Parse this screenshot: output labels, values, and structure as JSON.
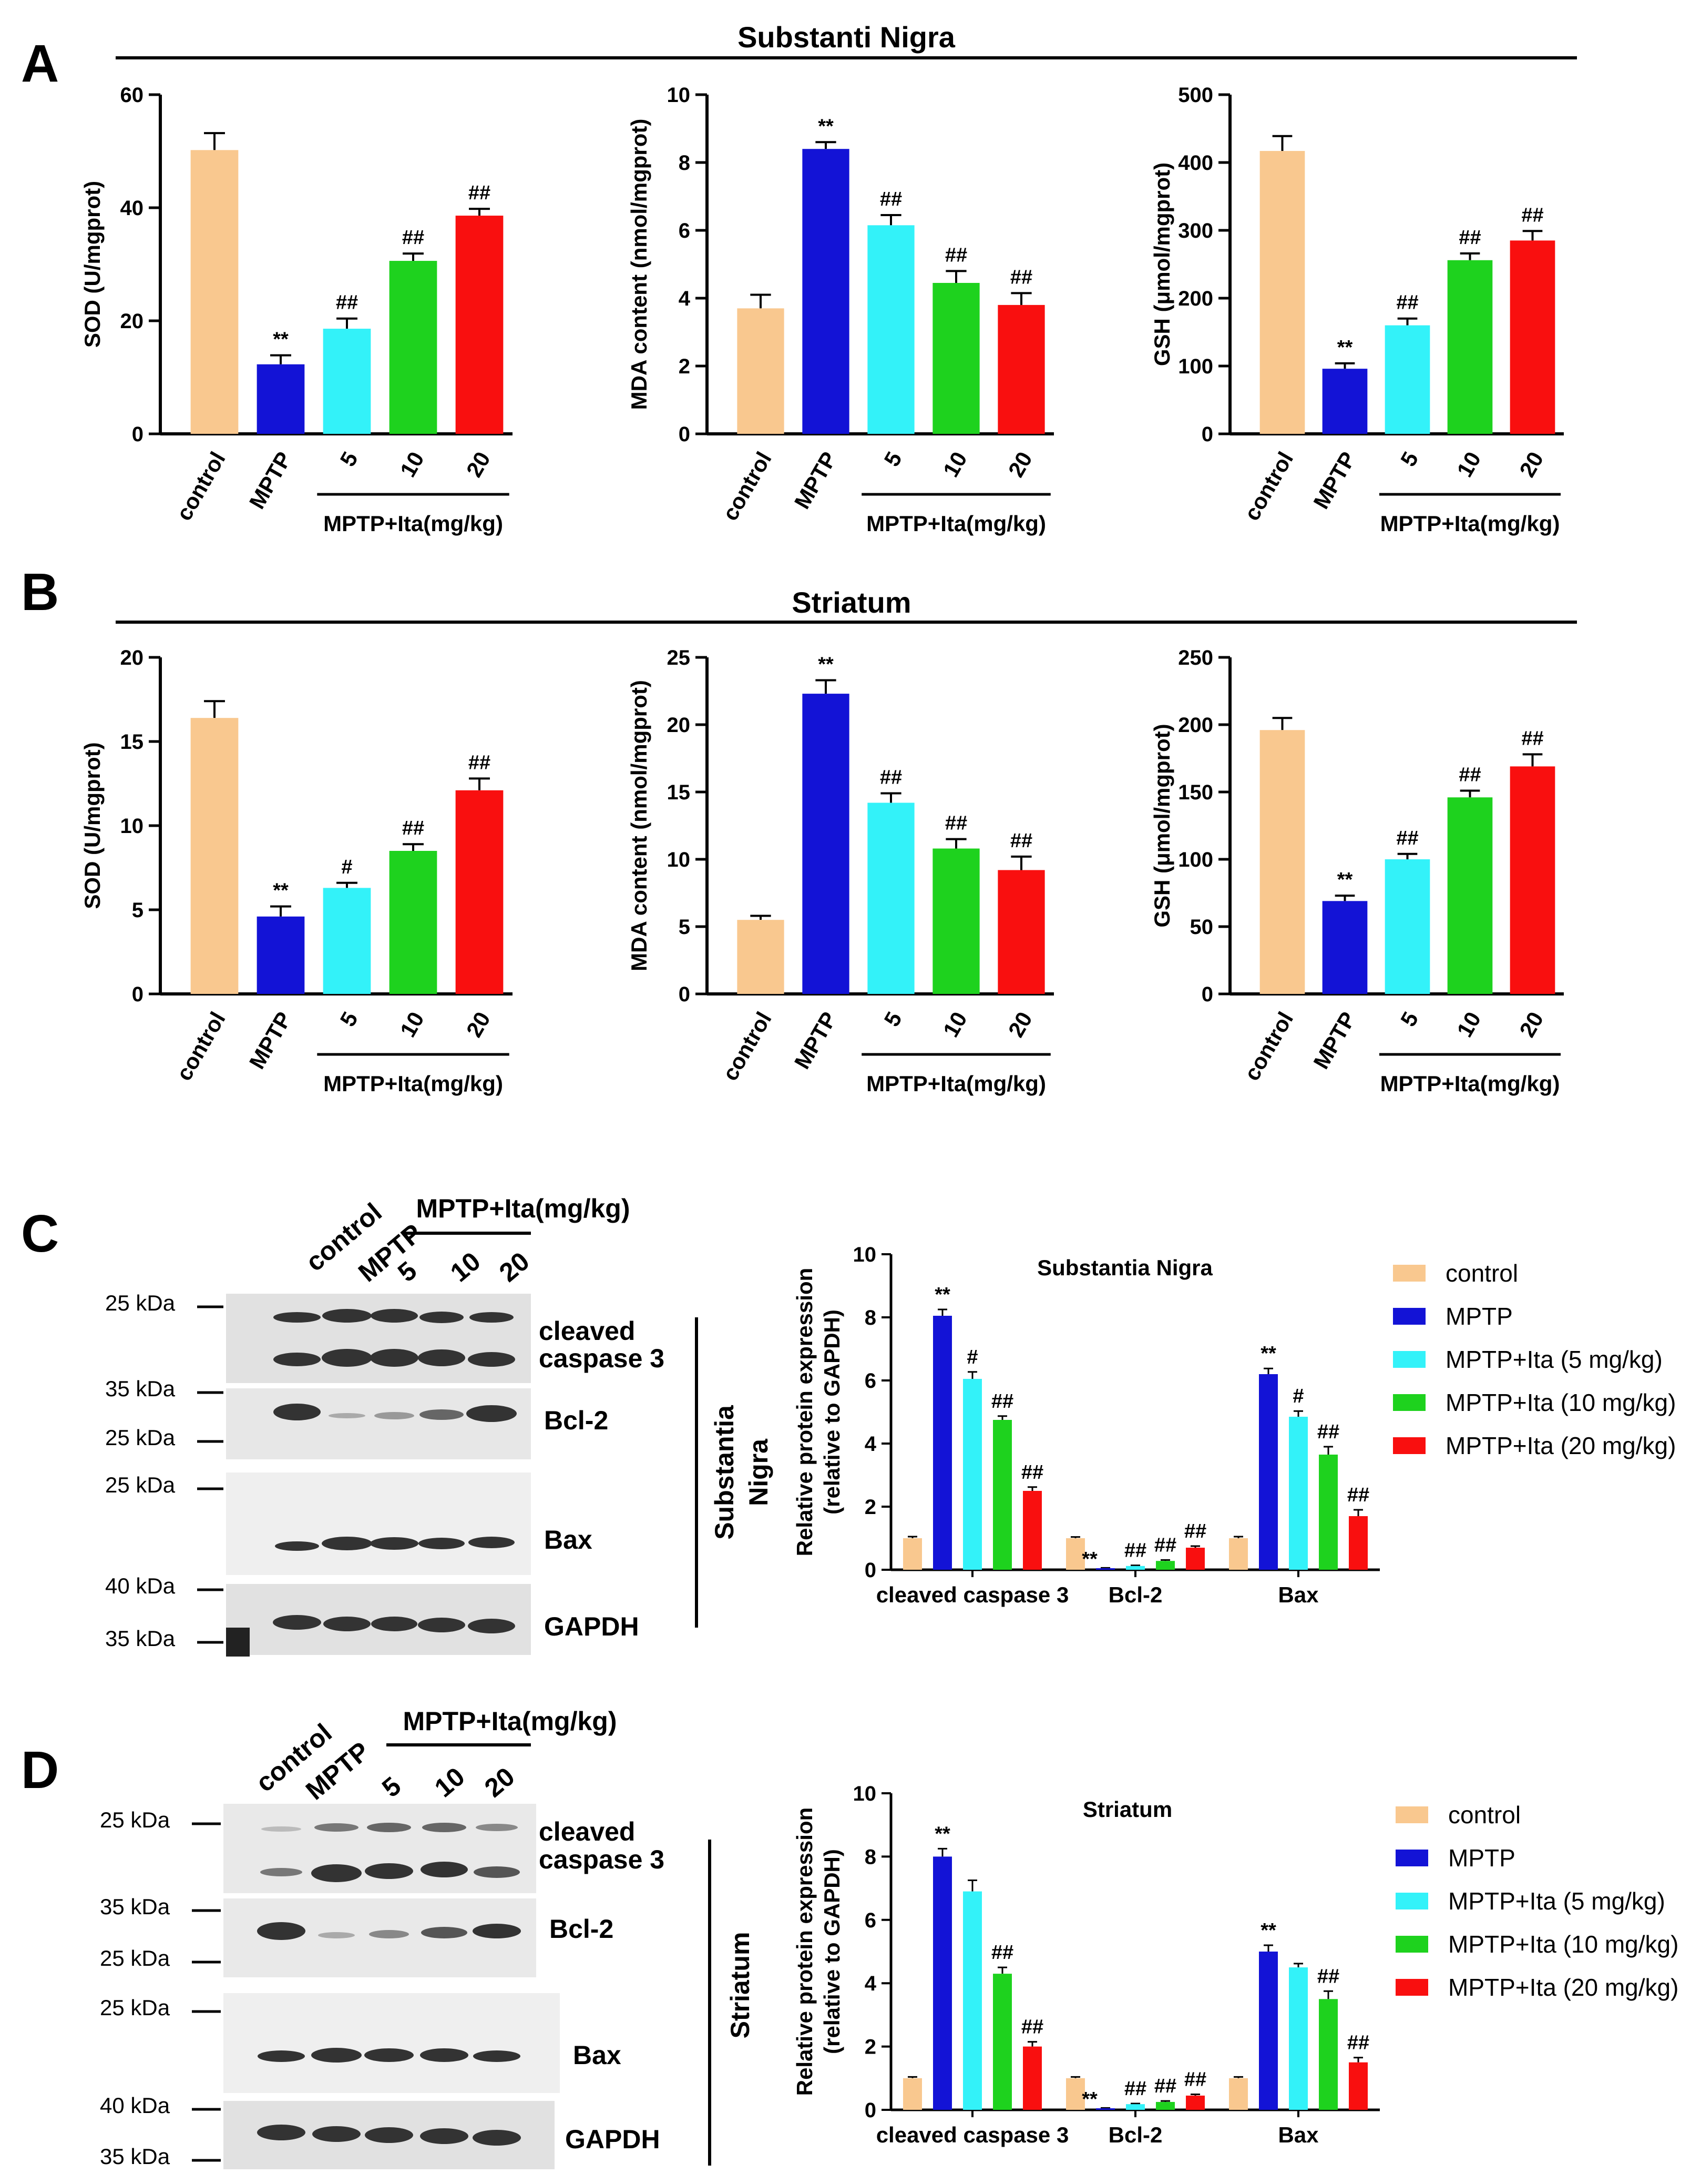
{
  "colors": {
    "control": "#f9c88f",
    "MPTP": "#1313d6",
    "ita5": "#33f2f9",
    "ita10": "#1ed21e",
    "ita20": "#f90f0f"
  },
  "panels": {
    "A": {
      "letter": "A",
      "header": "Substanti Nigra"
    },
    "B": {
      "letter": "B",
      "header": "Striatum"
    },
    "C": {
      "letter": "C",
      "region": "Substantia\nNigra"
    },
    "D": {
      "letter": "D",
      "region": "Striatum"
    }
  },
  "blots": {
    "C": {
      "lanes": [
        "control",
        "MPTP",
        "5",
        "10",
        "20"
      ],
      "group_label": "MPTP+Ita(mg/kg)",
      "kda": [
        "25 kDa",
        "35 kDa",
        "25 kDa",
        "25 kDa",
        "40 kDa",
        "35 kDa"
      ],
      "proteins": [
        "cleaved",
        "caspase 3",
        "Bcl-2",
        "Bax",
        "GAPDH"
      ]
    },
    "D": {
      "lanes": [
        "control",
        "MPTP",
        "5",
        "10",
        "20"
      ],
      "group_label": "MPTP+Ita(mg/kg)",
      "kda": [
        "25 kDa",
        "35 kDa",
        "25 kDa",
        "25 kDa",
        "40 kDa",
        "35 kDa"
      ],
      "proteins": [
        "cleaved",
        "caspase 3",
        "Bcl-2",
        "Bax",
        "GAPDH"
      ]
    }
  },
  "chart_data": [
    {
      "id": "A1",
      "type": "bar",
      "region": "Substanti Nigra",
      "categories": [
        "control",
        "MPTP",
        "5",
        "10",
        "20"
      ],
      "group_label": "MPTP+Ita(mg/kg)",
      "values": [
        50.2,
        12.3,
        18.6,
        30.6,
        38.6
      ],
      "errors": [
        3.0,
        1.6,
        1.8,
        1.3,
        1.2
      ],
      "annotations": [
        "",
        "**",
        "##",
        "##",
        "##"
      ],
      "ylabel": "SOD (U/mgprot)",
      "ylim": [
        0,
        60
      ],
      "yticks": [
        0,
        20,
        40,
        60
      ]
    },
    {
      "id": "A2",
      "type": "bar",
      "region": "Substanti Nigra",
      "categories": [
        "control",
        "MPTP",
        "5",
        "10",
        "20"
      ],
      "group_label": "MPTP+Ita(mg/kg)",
      "values": [
        3.7,
        8.4,
        6.15,
        4.45,
        3.8
      ],
      "errors": [
        0.4,
        0.2,
        0.3,
        0.35,
        0.35
      ],
      "annotations": [
        "",
        "**",
        "##",
        "##",
        "##"
      ],
      "ylabel": "MDA content (nmol/mgprot)",
      "ylim": [
        0,
        10
      ],
      "yticks": [
        0,
        2,
        4,
        6,
        8,
        10
      ]
    },
    {
      "id": "A3",
      "type": "bar",
      "region": "Substanti Nigra",
      "categories": [
        "control",
        "MPTP",
        "5",
        "10",
        "20"
      ],
      "group_label": "MPTP+Ita(mg/kg)",
      "values": [
        417,
        96,
        160,
        256,
        285
      ],
      "errors": [
        22,
        8,
        10,
        10,
        14
      ],
      "annotations": [
        "",
        "**",
        "##",
        "##",
        "##"
      ],
      "ylabel": "GSH (μmol/mgprot)",
      "ylim": [
        0,
        500
      ],
      "yticks": [
        0,
        100,
        200,
        300,
        400,
        500
      ]
    },
    {
      "id": "B1",
      "type": "bar",
      "region": "Striatum",
      "categories": [
        "control",
        "MPTP",
        "5",
        "10",
        "20"
      ],
      "group_label": "MPTP+Ita(mg/kg)",
      "values": [
        16.4,
        4.6,
        6.3,
        8.5,
        12.1
      ],
      "errors": [
        1.0,
        0.6,
        0.3,
        0.4,
        0.7
      ],
      "annotations": [
        "",
        "**",
        "#",
        "##",
        "##"
      ],
      "ylabel": "SOD (U/mgprot)",
      "ylim": [
        0,
        20
      ],
      "yticks": [
        0,
        5,
        10,
        15,
        20
      ]
    },
    {
      "id": "B2",
      "type": "bar",
      "region": "Striatum",
      "categories": [
        "control",
        "MPTP",
        "5",
        "10",
        "20"
      ],
      "group_label": "MPTP+Ita(mg/kg)",
      "values": [
        5.5,
        22.3,
        14.2,
        10.8,
        9.2
      ],
      "errors": [
        0.3,
        1.0,
        0.7,
        0.7,
        1.0
      ],
      "annotations": [
        "",
        "**",
        "##",
        "##",
        "##"
      ],
      "ylabel": "MDA content (nmol/mgprot)",
      "ylim": [
        0,
        25
      ],
      "yticks": [
        0,
        5,
        10,
        15,
        20,
        25
      ]
    },
    {
      "id": "B3",
      "type": "bar",
      "region": "Striatum",
      "categories": [
        "control",
        "MPTP",
        "5",
        "10",
        "20"
      ],
      "group_label": "MPTP+Ita(mg/kg)",
      "values": [
        196,
        69,
        100,
        146,
        169
      ],
      "errors": [
        9,
        4,
        4,
        5,
        9
      ],
      "annotations": [
        "",
        "**",
        "##",
        "##",
        "##"
      ],
      "ylabel": "GSH (μmol/mgprot)",
      "ylim": [
        0,
        250
      ],
      "yticks": [
        0,
        50,
        100,
        150,
        200,
        250
      ]
    },
    {
      "id": "C",
      "type": "bar",
      "title": "Substantia Nigra",
      "categories": [
        "cleaved caspase 3",
        "Bcl-2",
        "Bax"
      ],
      "ylabel": [
        "Relative protein expression",
        "(relative to GAPDH)"
      ],
      "ylim": [
        0,
        10
      ],
      "yticks": [
        0,
        2,
        4,
        6,
        8,
        10
      ],
      "series": [
        {
          "name": "control",
          "values": [
            1.0,
            1.0,
            1.0
          ],
          "errors": [
            0.05,
            0.04,
            0.05
          ],
          "annotations": [
            "",
            "",
            ""
          ]
        },
        {
          "name": "MPTP",
          "values": [
            8.05,
            0.05,
            6.2
          ],
          "errors": [
            0.2,
            0.01,
            0.18
          ],
          "annotations": [
            "**",
            "**",
            "**"
          ]
        },
        {
          "name": "MPTP+Ita (5 mg/kg)",
          "values": [
            6.05,
            0.12,
            4.85
          ],
          "errors": [
            0.22,
            0.02,
            0.18
          ],
          "annotations": [
            "#",
            "##",
            "#"
          ]
        },
        {
          "name": "MPTP+Ita (10 mg/kg)",
          "values": [
            4.75,
            0.28,
            3.65
          ],
          "errors": [
            0.12,
            0.03,
            0.25
          ],
          "annotations": [
            "##",
            "##",
            "##"
          ]
        },
        {
          "name": "MPTP+Ita (20 mg/kg)",
          "values": [
            2.5,
            0.7,
            1.7
          ],
          "errors": [
            0.12,
            0.05,
            0.2
          ],
          "annotations": [
            "##",
            "##",
            "##"
          ]
        }
      ]
    },
    {
      "id": "D",
      "type": "bar",
      "title": "Striatum",
      "categories": [
        "cleaved caspase 3",
        "Bcl-2",
        "Bax"
      ],
      "ylabel": [
        "Relative protein expression",
        "(relative to GAPDH)"
      ],
      "ylim": [
        0,
        10
      ],
      "yticks": [
        0,
        2,
        4,
        6,
        8,
        10
      ],
      "series": [
        {
          "name": "control",
          "values": [
            1.0,
            1.0,
            1.0
          ],
          "errors": [
            0.04,
            0.04,
            0.04
          ],
          "annotations": [
            "",
            "",
            ""
          ]
        },
        {
          "name": "MPTP",
          "values": [
            8.0,
            0.05,
            5.0
          ],
          "errors": [
            0.25,
            0.01,
            0.2
          ],
          "annotations": [
            "**",
            "**",
            "**"
          ]
        },
        {
          "name": "MPTP+Ita (5 mg/kg)",
          "values": [
            6.9,
            0.18,
            4.5
          ],
          "errors": [
            0.35,
            0.02,
            0.12
          ],
          "annotations": [
            "",
            "##",
            ""
          ]
        },
        {
          "name": "MPTP+Ita (10 mg/kg)",
          "values": [
            4.3,
            0.25,
            3.5
          ],
          "errors": [
            0.2,
            0.03,
            0.25
          ],
          "annotations": [
            "##",
            "##",
            "##"
          ]
        },
        {
          "name": "MPTP+Ita (20 mg/kg)",
          "values": [
            2.0,
            0.45,
            1.5
          ],
          "errors": [
            0.15,
            0.04,
            0.15
          ],
          "annotations": [
            "##",
            "##",
            "##"
          ]
        }
      ]
    }
  ]
}
